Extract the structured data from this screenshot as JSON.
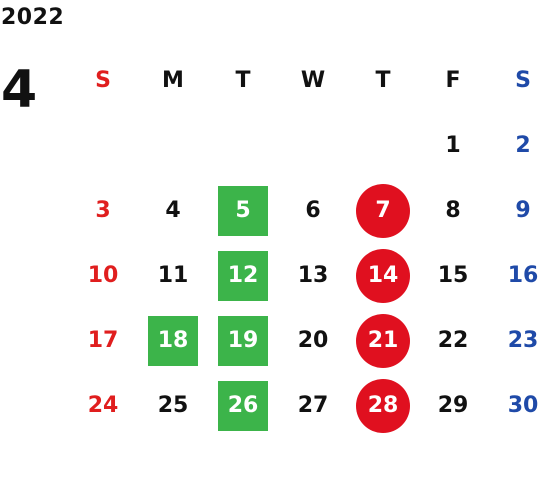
{
  "calendar": {
    "year": "2022",
    "month": "4",
    "weekdays": [
      "S",
      "M",
      "T",
      "W",
      "T",
      "F",
      "S"
    ],
    "weeks": [
      [
        "",
        "",
        "",
        "",
        "",
        "1",
        "2"
      ],
      [
        "3",
        "4",
        "5",
        "6",
        "7",
        "8",
        "9"
      ],
      [
        "10",
        "11",
        "12",
        "13",
        "14",
        "15",
        "16"
      ],
      [
        "17",
        "18",
        "19",
        "20",
        "21",
        "22",
        "23"
      ],
      [
        "24",
        "25",
        "26",
        "27",
        "28",
        "29",
        "30"
      ]
    ],
    "green_square_days": [
      "5",
      "12",
      "18",
      "19",
      "26"
    ],
    "red_circle_days": [
      "7",
      "14",
      "21",
      "28"
    ]
  },
  "colors": {
    "sunday_text": "#e01e1e",
    "saturday_text": "#1f4aa8",
    "weekday_text": "#111111",
    "green_mark": "#3cb44a",
    "red_mark": "#e0101f"
  }
}
